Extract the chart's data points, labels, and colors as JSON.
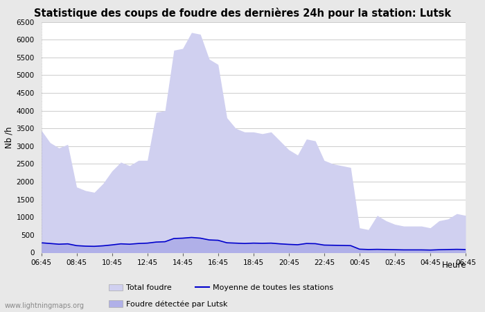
{
  "title": "Statistique des coups de foudre des dernières 24h pour la station: Lutsk",
  "xlabel": "Heure",
  "ylabel": "Nb /h",
  "ylim": [
    0,
    6500
  ],
  "yticks": [
    0,
    500,
    1000,
    1500,
    2000,
    2500,
    3000,
    3500,
    4000,
    4500,
    5000,
    5500,
    6000,
    6500
  ],
  "x_labels": [
    "06:45",
    "08:45",
    "10:45",
    "12:45",
    "14:45",
    "16:45",
    "18:45",
    "20:45",
    "22:45",
    "00:45",
    "02:45",
    "04:45",
    "06:45"
  ],
  "bg_color": "#e8e8e8",
  "plot_bg_color": "#ffffff",
  "fill_total_color": "#d0d0f0",
  "fill_lutsk_color": "#b0b0e8",
  "line_color": "#0000cc",
  "watermark": "www.lightningmaps.org",
  "x_values": [
    0,
    1,
    2,
    3,
    4,
    5,
    6,
    7,
    8,
    9,
    10,
    11,
    12,
    13,
    14,
    15,
    16,
    17,
    18,
    19,
    20,
    21,
    22,
    23,
    24,
    25,
    26,
    27,
    28,
    29,
    30,
    31,
    32,
    33,
    34,
    35,
    36,
    37,
    38,
    39,
    40,
    41,
    42,
    43,
    44,
    45,
    46,
    47,
    48
  ],
  "total_foudre": [
    3450,
    3100,
    2950,
    3050,
    1850,
    1750,
    1700,
    1950,
    2300,
    2550,
    2450,
    2600,
    2600,
    3950,
    4000,
    5700,
    5750,
    6200,
    6150,
    5450,
    5300,
    3800,
    3500,
    3400,
    3400,
    3350,
    3400,
    3150,
    2900,
    2750,
    3200,
    3150,
    2600,
    2500,
    2450,
    2400,
    700,
    650,
    1050,
    900,
    800,
    750,
    750,
    750,
    700,
    900,
    950,
    1100,
    1050
  ],
  "foudre_lutsk": [
    300,
    280,
    260,
    270,
    200,
    185,
    190,
    210,
    230,
    250,
    240,
    260,
    270,
    310,
    320,
    420,
    430,
    450,
    420,
    380,
    360,
    295,
    280,
    270,
    270,
    265,
    270,
    255,
    240,
    230,
    265,
    260,
    220,
    215,
    210,
    205,
    105,
    95,
    100,
    95,
    90,
    85,
    85,
    85,
    80,
    90,
    95,
    100,
    95
  ],
  "moyenne": [
    280,
    260,
    240,
    250,
    200,
    185,
    180,
    195,
    220,
    250,
    240,
    260,
    270,
    300,
    310,
    400,
    410,
    430,
    410,
    360,
    350,
    280,
    270,
    260,
    270,
    265,
    270,
    250,
    235,
    225,
    260,
    255,
    215,
    210,
    205,
    200,
    100,
    90,
    95,
    90,
    85,
    80,
    80,
    80,
    75,
    85,
    90,
    95,
    90
  ]
}
